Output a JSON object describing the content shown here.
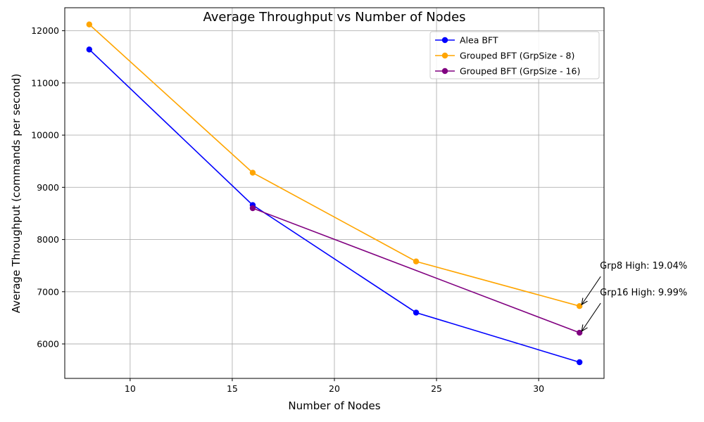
{
  "chart_data": {
    "type": "line",
    "title": "Average Throughput vs Number of Nodes",
    "xlabel": "Number of Nodes",
    "ylabel": "Average Throughput (commands per second)",
    "xlim": [
      6.8,
      33.2
    ],
    "ylim": [
      5340,
      12440
    ],
    "xticks": [
      10,
      15,
      20,
      25,
      30
    ],
    "yticks": [
      6000,
      7000,
      8000,
      9000,
      10000,
      11000,
      12000
    ],
    "grid": true,
    "legend_position": "top-right",
    "series": [
      {
        "name": "Alea BFT",
        "color": "#0000ff",
        "x": [
          8,
          16,
          24,
          32
        ],
        "y": [
          11640,
          8660,
          6600,
          5650
        ]
      },
      {
        "name": "Grouped BFT (GrpSize - 8)",
        "color": "#ffa500",
        "x": [
          8,
          16,
          24,
          32
        ],
        "y": [
          12120,
          9280,
          7580,
          6725
        ]
      },
      {
        "name": "Grouped BFT (GrpSize - 16)",
        "color": "#800080",
        "x": [
          16,
          32
        ],
        "y": [
          8600,
          6215
        ]
      }
    ],
    "annotations": [
      {
        "text": "Grp8 High: 19.04%",
        "x": 32,
        "y": 6725
      },
      {
        "text": "Grp16 High: 9.99%",
        "x": 32,
        "y": 6215
      }
    ]
  }
}
